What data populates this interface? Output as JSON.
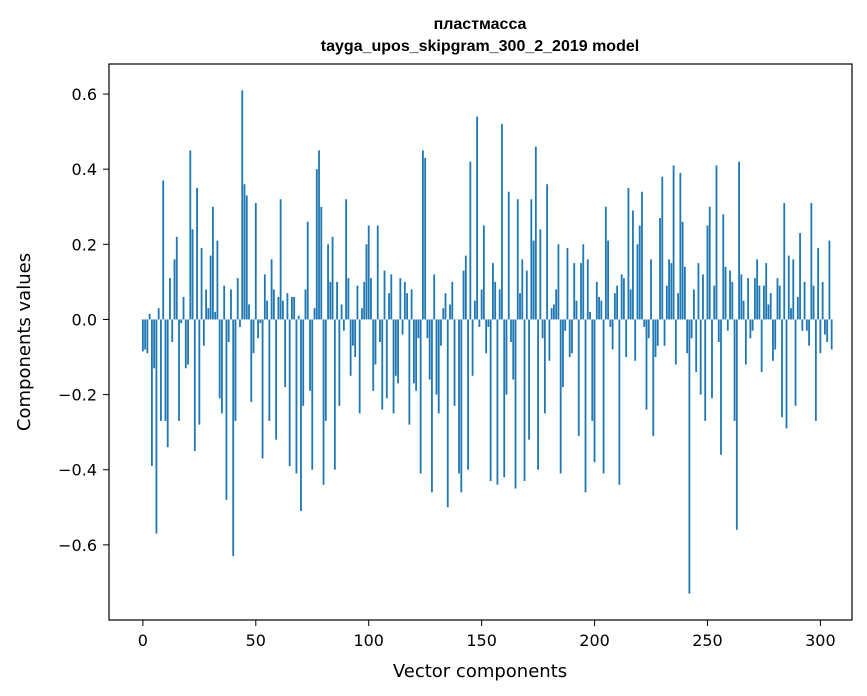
{
  "chart_data": {
    "type": "bar",
    "title": [
      "пластмасса",
      "tayga_upos_skipgram_300_2_2019 model"
    ],
    "xlabel": "Vector components",
    "ylabel": "Components values",
    "xlim": [
      -15,
      314
    ],
    "ylim": [
      -0.8,
      0.68
    ],
    "xticks": [
      0,
      50,
      100,
      150,
      200,
      250,
      300
    ],
    "xtick_labels": [
      "0",
      "50",
      "100",
      "150",
      "200",
      "250",
      "300"
    ],
    "yticks": [
      -0.6,
      -0.4,
      -0.2,
      0.0,
      0.2,
      0.4,
      0.6
    ],
    "ytick_labels": [
      "−0.6",
      "−0.4",
      "−0.2",
      "0.0",
      "0.2",
      "0.4",
      "0.6"
    ],
    "bar_color": "#1f77b4",
    "values": [
      -0.085,
      -0.08,
      -0.09,
      0.015,
      -0.39,
      -0.13,
      -0.57,
      0.03,
      -0.27,
      0.37,
      -0.27,
      -0.34,
      0.11,
      -0.06,
      0.16,
      0.22,
      -0.27,
      -0.01,
      0.06,
      -0.13,
      -0.12,
      0.45,
      0.24,
      -0.35,
      0.35,
      -0.28,
      0.19,
      -0.07,
      0.08,
      0.03,
      0.17,
      0.3,
      0.02,
      0.21,
      -0.21,
      -0.25,
      0.09,
      -0.48,
      -0.06,
      0.08,
      -0.63,
      -0.27,
      0.11,
      -0.02,
      0.61,
      0.36,
      0.33,
      0.04,
      -0.22,
      -0.09,
      0.31,
      -0.05,
      -0.01,
      -0.37,
      0.12,
      0.05,
      -0.27,
      0.16,
      0.08,
      -0.32,
      0.06,
      0.32,
      0.05,
      -0.18,
      0.07,
      -0.39,
      0.06,
      0.06,
      -0.41,
      0.01,
      -0.51,
      -0.23,
      0.08,
      0.26,
      -0.19,
      -0.4,
      0.03,
      0.4,
      0.45,
      0.3,
      -0.44,
      -0.27,
      0.2,
      0.1,
      0.22,
      -0.4,
      0.1,
      -0.23,
      0.04,
      -0.03,
      0.32,
      0.11,
      -0.15,
      -0.07,
      -0.1,
      0.09,
      -0.25,
      0.03,
      0.1,
      0.2,
      0.25,
      0.11,
      -0.19,
      -0.12,
      0.25,
      -0.06,
      -0.24,
      0.13,
      -0.21,
      0.07,
      0.12,
      -0.25,
      -0.15,
      -0.17,
      0.11,
      -0.04,
      0.1,
      0.07,
      -0.28,
      0.08,
      -0.17,
      -0.19,
      -0.05,
      -0.41,
      0.45,
      0.43,
      -0.05,
      -0.16,
      -0.46,
      0.12,
      -0.2,
      -0.25,
      -0.07,
      0.03,
      0.07,
      -0.5,
      0.04,
      0.1,
      -0.23,
      0.0,
      -0.41,
      -0.46,
      0.13,
      0.17,
      -0.4,
      0.42,
      -0.15,
      0.05,
      0.54,
      -0.02,
      0.08,
      0.25,
      -0.09,
      -0.02,
      -0.43,
      0.15,
      0.1,
      -0.44,
      0.08,
      0.52,
      -0.42,
      -0.2,
      0.34,
      -0.06,
      -0.16,
      -0.45,
      0.32,
      0.07,
      0.16,
      -0.43,
      0.13,
      -0.32,
      0.32,
      0.21,
      0.46,
      -0.4,
      0.24,
      -0.05,
      -0.25,
      0.36,
      -0.11,
      0.03,
      0.04,
      0.08,
      0.2,
      -0.41,
      -0.18,
      -0.03,
      0.19,
      -0.1,
      -0.09,
      0.15,
      0.05,
      -0.31,
      0.15,
      0.2,
      -0.46,
      0.16,
      0.02,
      -0.27,
      -0.38,
      0.1,
      0.06,
      0.05,
      -0.41,
      0.3,
      0.21,
      -0.02,
      -0.08,
      0.07,
      0.09,
      -0.44,
      0.12,
      0.11,
      -0.1,
      0.35,
      0.08,
      0.29,
      -0.11,
      0.2,
      0.25,
      0.34,
      -0.02,
      -0.24,
      -0.05,
      0.16,
      -0.31,
      -0.1,
      -0.07,
      0.27,
      0.38,
      -0.07,
      0.09,
      0.16,
      0.15,
      0.41,
      -0.12,
      0.07,
      0.39,
      0.26,
      0.14,
      -0.09,
      -0.73,
      -0.05,
      0.08,
      -0.14,
      0.15,
      -0.2,
      0.12,
      -0.27,
      0.25,
      0.3,
      -0.21,
      0.09,
      0.41,
      -0.06,
      -0.36,
      0.28,
      0.14,
      -0.03,
      0.13,
      0.1,
      -0.27,
      -0.56,
      0.42,
      0.12,
      0.05,
      -0.12,
      0.11,
      -0.05,
      -0.03,
      0.11,
      0.16,
      0.09,
      -0.14,
      0.09,
      0.15,
      0.04,
      0.07,
      -0.11,
      -0.08,
      0.11,
      0.09,
      -0.26,
      0.31,
      -0.29,
      0.17,
      0.03,
      0.16,
      -0.23,
      0.06,
      0.23,
      -0.03,
      0.1,
      -0.03,
      -0.07,
      0.31,
      0.09,
      -0.27,
      0.19,
      -0.09,
      0.1,
      -0.04,
      -0.06,
      0.21,
      -0.08
    ]
  }
}
